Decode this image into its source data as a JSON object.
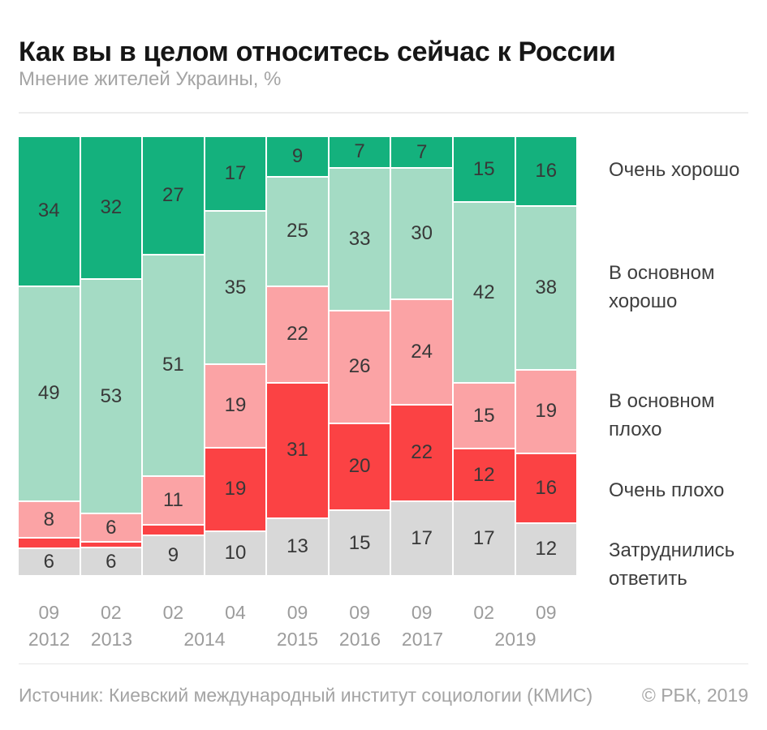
{
  "header": {
    "title": "Как вы в целом относитесь сейчас к России",
    "subtitle": "Мнение жителей Украины, %"
  },
  "chart_data": {
    "type": "bar",
    "stacked": true,
    "unit": "%",
    "legend_position": "right",
    "grid": false,
    "categories_months": [
      "09",
      "02",
      "02",
      "04",
      "09",
      "09",
      "09",
      "02",
      "09"
    ],
    "categories_years": [
      {
        "label": "2012",
        "span": 1
      },
      {
        "label": "2013",
        "span": 1
      },
      {
        "label": "2014",
        "span": 2
      },
      {
        "label": "2015",
        "span": 1
      },
      {
        "label": "2016",
        "span": 1
      },
      {
        "label": "2017",
        "span": 1
      },
      {
        "label": "2019",
        "span": 2
      }
    ],
    "series": [
      {
        "name": "Очень хорошо",
        "color": "#14b17d",
        "values": [
          34,
          32,
          27,
          17,
          9,
          7,
          7,
          15,
          16
        ],
        "labels": [
          "34",
          "32",
          "27",
          "17",
          "9",
          "7",
          "7",
          "15",
          "16"
        ]
      },
      {
        "name": "В основном хорошо",
        "color": "#a4dbc4",
        "values": [
          49,
          53,
          51,
          35,
          25,
          33,
          30,
          42,
          38
        ],
        "labels": [
          "49",
          "53",
          "51",
          "35",
          "25",
          "33",
          "30",
          "42",
          "38"
        ]
      },
      {
        "name": "В основном плохо",
        "color": "#fba3a5",
        "values": [
          8,
          6,
          11,
          19,
          22,
          26,
          24,
          15,
          19
        ],
        "labels": [
          "8",
          "6",
          "11",
          "19",
          "22",
          "26",
          "24",
          "15",
          "19"
        ]
      },
      {
        "name": "Очень плохо",
        "color": "#fb4244",
        "values": [
          2,
          1,
          2,
          19,
          31,
          20,
          22,
          12,
          16
        ],
        "labels": [
          "",
          "",
          "",
          "19",
          "31",
          "20",
          "22",
          "12",
          "16"
        ]
      },
      {
        "name": "Затруднились ответить",
        "color": "#d8d8d8",
        "values": [
          6,
          6,
          9,
          10,
          13,
          15,
          17,
          17,
          12
        ],
        "labels": [
          "6",
          "6",
          "9",
          "10",
          "13",
          "15",
          "17",
          "17",
          "12"
        ]
      }
    ]
  },
  "footer": {
    "source": "Источник: Киевский международный институт социологии (КМИС)",
    "copyright": "© РБК, 2019"
  }
}
